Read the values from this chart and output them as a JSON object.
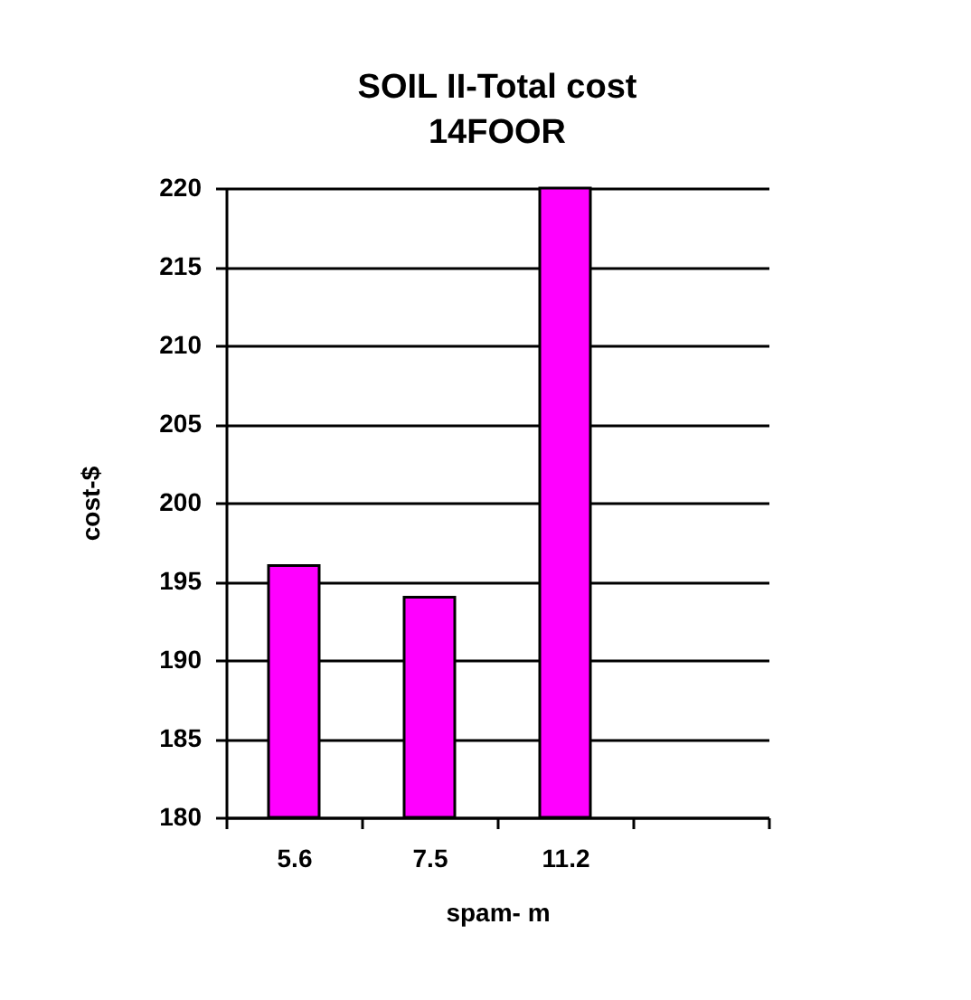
{
  "chart_data": {
    "type": "bar",
    "title": "SOIL II-Total cost",
    "subtitle": "14FOOR",
    "xlabel": "spam-  m",
    "ylabel": "cost-$",
    "categories": [
      "5.6",
      "7.5",
      "11.2",
      null
    ],
    "values": [
      196,
      194,
      220,
      null
    ],
    "color": "#ff00ff",
    "ylim": [
      180,
      220
    ],
    "yticks": [
      180,
      185,
      190,
      195,
      200,
      205,
      210,
      215,
      220
    ],
    "grid": "y"
  }
}
